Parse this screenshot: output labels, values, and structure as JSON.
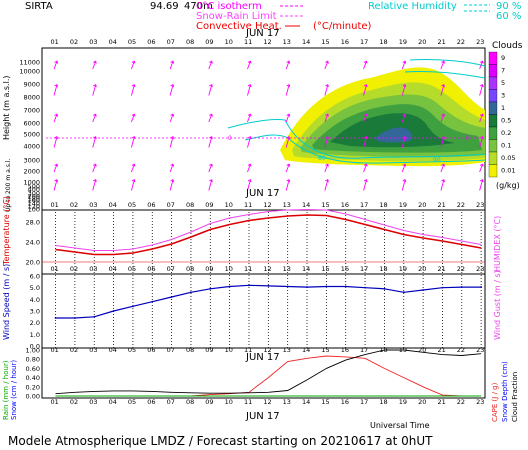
{
  "header": {
    "station": "SIRTA",
    "coords": "94.69",
    "coords_suffix": "470m",
    "legend_isotherm": "0°C isotherm",
    "legend_snow_rain": "Snow-Rain Limit",
    "legend_convective": "Convective Heat.",
    "legend_convective_units": "(°C/minute)",
    "legend_rh": "Relative Humidity",
    "rh_90": "90 %",
    "rh_60": "60 %"
  },
  "date_label": "JUN 17",
  "hours": [
    "01",
    "02",
    "03",
    "04",
    "05",
    "06",
    "07",
    "08",
    "09",
    "10",
    "11",
    "12",
    "13",
    "14",
    "15",
    "16",
    "17",
    "18",
    "19",
    "20",
    "21",
    "22",
    "23"
  ],
  "colors": {
    "isotherm": "#ff00ff",
    "temperature": "#dd0000",
    "humidex": "#ee44ee",
    "wind": "#0000bb",
    "rain": "#00aa00",
    "snow": "#0000ff",
    "cape": "#ee2222",
    "cloud_fraction": "#000000",
    "rh": "#00cccc"
  },
  "footer": {
    "universal_time": "Universal Time",
    "title": "Modele Atmospherique LMDZ / Forecast starting on 20210617 at 0hUT"
  },
  "chart_data": [
    {
      "type": "heatmap",
      "name": "clouds",
      "ylabel": "Height (m a.s.l.)",
      "ylabel_low": "Up to 200 m a.s.l.",
      "yticks": [
        "11000",
        "10000",
        "9000",
        "8000",
        "7000",
        "6000",
        "5000",
        "4000",
        "3000",
        "2000",
        "1000",
        "500",
        "400",
        "300",
        "200",
        "180",
        "160",
        "140",
        "120",
        "100"
      ],
      "colorbar_title": "Clouds",
      "colorbar_units": "(g/kg)",
      "colorbar_ticks": [
        "9",
        "7",
        "5",
        "3",
        "1",
        "0.5",
        "0.2",
        "0.1",
        "0.05",
        "0.01"
      ],
      "colorbar_colors": [
        "#ff00ff",
        "#dd00ff",
        "#aa33ff",
        "#7744ff",
        "#336699",
        "#1a7a3a",
        "#3fa040",
        "#77c23f",
        "#b5dc2a",
        "#f0f000"
      ],
      "isotherm_height_m": 3700,
      "isotherm_labels": [
        "0",
        "0"
      ]
    },
    {
      "type": "line",
      "name": "temperature",
      "ylabel": "Temperature (°C)",
      "ylabel_right": "HUMIDEX (°C)",
      "yticks": [
        "28.0",
        "24.0",
        "20.0"
      ],
      "ylim": [
        18,
        30
      ],
      "x": [
        1,
        2,
        3,
        4,
        5,
        6,
        7,
        8,
        9,
        10,
        11,
        12,
        13,
        14,
        15,
        16,
        17,
        18,
        19,
        20,
        21,
        22,
        23
      ],
      "series": [
        {
          "key": "temperature",
          "values": [
            22.5,
            22.0,
            21.5,
            21.5,
            21.8,
            22.6,
            23.6,
            25.0,
            26.5,
            27.5,
            28.3,
            28.8,
            29.2,
            29.4,
            29.3,
            28.5,
            27.5,
            26.5,
            25.5,
            24.8,
            24.2,
            23.5,
            22.8
          ]
        },
        {
          "key": "humidex",
          "values": [
            23.3,
            22.8,
            22.3,
            22.3,
            22.6,
            23.4,
            24.5,
            26.0,
            27.7,
            28.8,
            29.5,
            30.1,
            30.4,
            30.5,
            30.4,
            29.6,
            28.5,
            27.4,
            26.3,
            25.5,
            24.9,
            24.2,
            23.5
          ]
        }
      ]
    },
    {
      "type": "line",
      "name": "wind",
      "ylabel": "Wind Speed (m / s)",
      "ylabel_right": "Wind Gust (m / s)",
      "yticks": [
        "6.0",
        "5.0",
        "4.0",
        "3.0",
        "2.0",
        "1.0",
        "0.0"
      ],
      "ylim": [
        0,
        6
      ],
      "x": [
        1,
        2,
        3,
        4,
        5,
        6,
        7,
        8,
        9,
        10,
        11,
        12,
        13,
        14,
        15,
        16,
        17,
        18,
        19,
        20,
        21,
        22,
        23
      ],
      "series": [
        {
          "key": "wind",
          "values": [
            2.4,
            2.4,
            2.5,
            3.0,
            3.4,
            3.8,
            4.2,
            4.6,
            4.9,
            5.1,
            5.2,
            5.15,
            5.1,
            5.05,
            5.1,
            5.1,
            5.0,
            4.9,
            4.6,
            4.8,
            5.0,
            5.05,
            5.05
          ]
        }
      ]
    },
    {
      "type": "line",
      "name": "precipitation",
      "ylabel": "Rain (mm / hour)",
      "ylabel_2": "Snow (cm / hour)",
      "ylabel_right": "CAPE (J / g)",
      "ylabel_right_2": "Snow Depth (cm)",
      "ylabel_right_3": "Cloud Fraction",
      "yticks": [
        "1.00",
        "0.80",
        "0.60",
        "0.40",
        "0.20",
        "0.00"
      ],
      "ylim": [
        0,
        1
      ],
      "x": [
        1,
        2,
        3,
        4,
        5,
        6,
        7,
        8,
        9,
        10,
        11,
        12,
        13,
        14,
        15,
        16,
        17,
        18,
        19,
        20,
        21,
        22,
        23
      ],
      "series": [
        {
          "key": "cape",
          "values": [
            0,
            0,
            0,
            0,
            0,
            0,
            0,
            0,
            0.03,
            0.05,
            0.08,
            0.4,
            0.75,
            0.82,
            0.87,
            0.85,
            0.82,
            0.6,
            0.4,
            0.2,
            0.02,
            0,
            0
          ]
        },
        {
          "key": "cloud_fraction",
          "values": [
            0.05,
            0.08,
            0.1,
            0.11,
            0.11,
            0.1,
            0.08,
            0.07,
            0.06,
            0.06,
            0.07,
            0.08,
            0.12,
            0.35,
            0.6,
            0.78,
            0.9,
            1.0,
            1.0,
            0.95,
            0.9,
            0.88,
            0.92
          ]
        },
        {
          "key": "rain",
          "values": [
            0,
            0,
            0,
            0,
            0,
            0,
            0,
            0,
            0,
            0,
            0,
            0,
            0,
            0,
            0,
            0,
            0,
            0,
            0,
            0,
            0,
            0,
            0
          ]
        }
      ]
    }
  ]
}
